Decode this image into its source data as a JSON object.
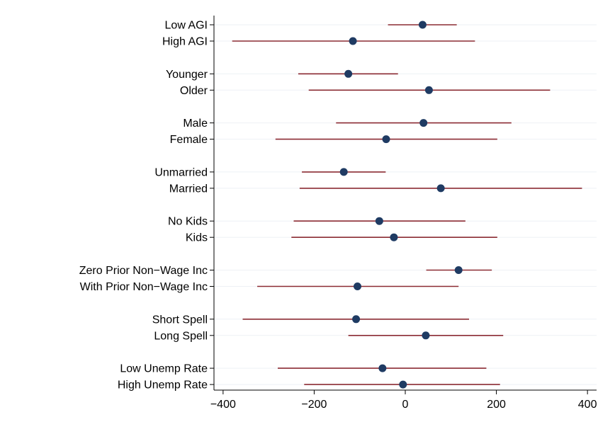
{
  "chart_data": {
    "type": "scatter",
    "subtype": "coefficient-plot",
    "title": "",
    "xlabel": "",
    "ylabel": "",
    "xlim": [
      -420,
      420
    ],
    "xticks": [
      -400,
      -200,
      0,
      200,
      400
    ],
    "xtick_labels": [
      "−400",
      "−200",
      "0",
      "200",
      "400"
    ],
    "grid": true,
    "colors": {
      "marker": "#1f3b63",
      "ci_line": "#8b2b33",
      "grid": "#eef1f5",
      "axis": "#000000"
    },
    "groups": [
      {
        "items": [
          {
            "label": "Low AGI",
            "estimate": 38,
            "ci": [
              -38,
              113
            ]
          },
          {
            "label": "High AGI",
            "estimate": -115,
            "ci": [
              -380,
              153
            ]
          }
        ]
      },
      {
        "items": [
          {
            "label": "Younger",
            "estimate": -125,
            "ci": [
              -235,
              -16
            ]
          },
          {
            "label": "Older",
            "estimate": 52,
            "ci": [
              -212,
              318
            ]
          }
        ]
      },
      {
        "items": [
          {
            "label": "Male",
            "estimate": 40,
            "ci": [
              -152,
              233
            ]
          },
          {
            "label": "Female",
            "estimate": -42,
            "ci": [
              -285,
              202
            ]
          }
        ]
      },
      {
        "items": [
          {
            "label": "Unmarried",
            "estimate": -135,
            "ci": [
              -227,
              -43
            ]
          },
          {
            "label": "Married",
            "estimate": 78,
            "ci": [
              -232,
              388
            ]
          }
        ]
      },
      {
        "items": [
          {
            "label": "No Kids",
            "estimate": -57,
            "ci": [
              -245,
              132
            ]
          },
          {
            "label": "Kids",
            "estimate": -25,
            "ci": [
              -250,
              202
            ]
          }
        ]
      },
      {
        "items": [
          {
            "label": "Zero Prior Non−Wage Inc",
            "estimate": 117,
            "ci": [
              46,
              190
            ]
          },
          {
            "label": "With Prior Non−Wage Inc",
            "estimate": -105,
            "ci": [
              -325,
              117
            ]
          }
        ]
      },
      {
        "items": [
          {
            "label": "Short Spell",
            "estimate": -108,
            "ci": [
              -357,
              140
            ]
          },
          {
            "label": "Long Spell",
            "estimate": 45,
            "ci": [
              -125,
              215
            ]
          }
        ]
      },
      {
        "items": [
          {
            "label": "Low Unemp Rate",
            "estimate": -50,
            "ci": [
              -280,
              178
            ]
          },
          {
            "label": "High Unemp Rate",
            "estimate": -5,
            "ci": [
              -222,
              208
            ]
          }
        ]
      }
    ]
  }
}
